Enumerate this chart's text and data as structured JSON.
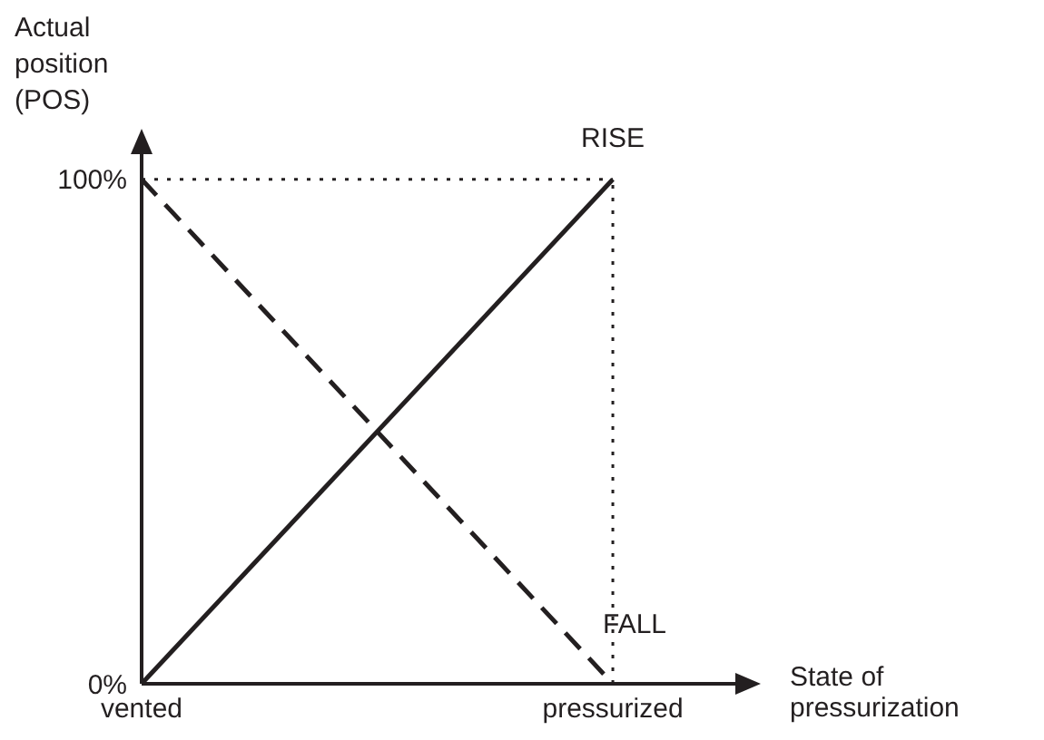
{
  "chart_data": {
    "type": "line",
    "xlabel": "State of pressurization",
    "ylabel": "Actual position (POS)",
    "categories": [
      "vented",
      "pressurized"
    ],
    "ylim": [
      0,
      105
    ],
    "yticks": [
      {
        "value": 0,
        "label": "0%"
      },
      {
        "value": 100,
        "label": "100%"
      }
    ],
    "series": [
      {
        "name": "RISE",
        "color": "#231f20",
        "values": [
          0,
          100
        ],
        "line_style": "solid"
      },
      {
        "name": "FALL",
        "color": "#231f20",
        "values": [
          100,
          0
        ],
        "line_style": "dashed"
      }
    ],
    "ref_lines": [
      {
        "axis": "y",
        "value": 100,
        "color": "#231f20",
        "line_style": "dotted"
      },
      {
        "axis": "x",
        "value": "pressurized",
        "color": "#231f20",
        "line_style": "dotted"
      }
    ],
    "grid": false,
    "marker": "none"
  }
}
